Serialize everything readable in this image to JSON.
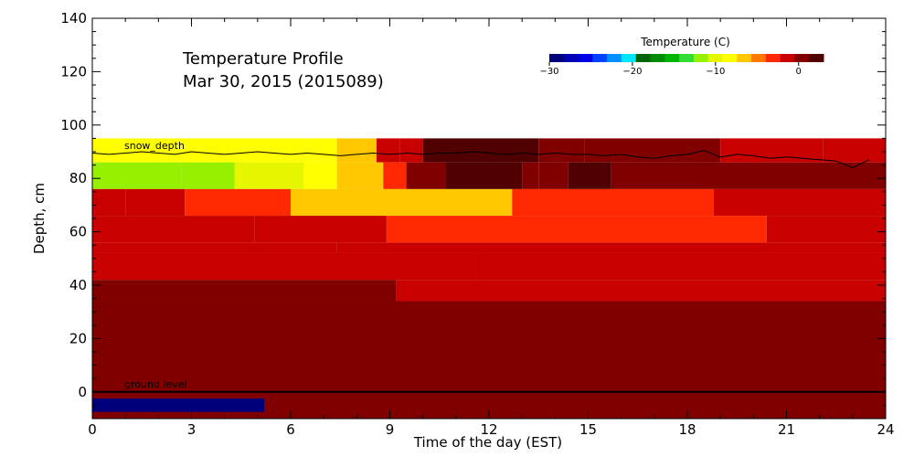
{
  "chart_data": {
    "type": "heatmap",
    "title": "Temperature Profile",
    "subtitle": "Mar 30, 2015 (2015089)",
    "xlabel": "Time of the day (EST)",
    "ylabel": "Depth, cm",
    "xlim": [
      0,
      24
    ],
    "ylim": [
      -10,
      140
    ],
    "xticks": [
      0,
      3,
      6,
      9,
      12,
      15,
      18,
      21,
      24
    ],
    "yticks": [
      0,
      20,
      40,
      60,
      80,
      100,
      120,
      140
    ],
    "grid": false,
    "colorbar": {
      "label": "Temperature (C)",
      "range": [
        -30,
        3
      ],
      "ticks": [
        -30,
        -20,
        -10,
        0
      ],
      "colors": [
        "#00007a",
        "#0000b4",
        "#0000e6",
        "#0040ff",
        "#0090ff",
        "#00e6ff",
        "#006400",
        "#008c00",
        "#00b400",
        "#32dc32",
        "#96f000",
        "#e6f500",
        "#ffff00",
        "#ffc800",
        "#ff7800",
        "#ff2800",
        "#c80000",
        "#800000",
        "#500000"
      ]
    },
    "annotations": {
      "snow_depth_label": "snow_depth",
      "ground_label": "ground level",
      "ground_level_depth": 0
    },
    "snow_depth": {
      "x": [
        0,
        0.5,
        1,
        1.5,
        2,
        2.5,
        3,
        3.5,
        4,
        4.5,
        5,
        5.5,
        6,
        6.5,
        7,
        7.5,
        8,
        8.5,
        9,
        9.5,
        10,
        10.5,
        11,
        11.5,
        12,
        12.5,
        13,
        13.5,
        14,
        14.5,
        15,
        15.5,
        16,
        16.5,
        17,
        17.5,
        18,
        18.5,
        19,
        19.5,
        20,
        20.5,
        21,
        21.5,
        22,
        22.5,
        23,
        23.5
      ],
      "y": [
        89.5,
        89,
        89.5,
        90,
        89.5,
        89,
        90,
        89.5,
        89,
        89.5,
        90,
        89.5,
        89,
        89.5,
        89,
        88.5,
        89,
        89.5,
        89,
        89.5,
        89,
        89.5,
        89.5,
        90,
        89.5,
        89,
        89.5,
        89,
        89.5,
        89,
        89,
        88.5,
        89,
        88,
        87.5,
        88.5,
        89,
        90.5,
        88,
        89,
        88.5,
        87.5,
        88,
        87.5,
        87,
        86.5,
        84,
        87
      ]
    },
    "bands": [
      {
        "top": 95,
        "bottom": 86,
        "segments": [
          {
            "x0": 0,
            "x1": 6.5,
            "t": -9
          },
          {
            "x0": 6.5,
            "x1": 7.4,
            "t": -8
          },
          {
            "x0": 7.4,
            "x1": 8.6,
            "t": -6
          },
          {
            "x0": 8.6,
            "x1": 9.3,
            "t": -2
          },
          {
            "x0": 9.3,
            "x1": 10,
            "t": -1
          },
          {
            "x0": 10,
            "x1": 13.5,
            "t": 2.5
          },
          {
            "x0": 13.5,
            "x1": 14.9,
            "t": 0.5
          },
          {
            "x0": 14.9,
            "x1": 19,
            "t": 0
          },
          {
            "x0": 19,
            "x1": 22.1,
            "t": -0.5
          },
          {
            "x0": 22.1,
            "x1": 24,
            "t": -1
          }
        ]
      },
      {
        "top": 86,
        "bottom": 76,
        "segments": [
          {
            "x0": 0,
            "x1": 2.7,
            "t": -11
          },
          {
            "x0": 2.7,
            "x1": 4.3,
            "t": -12
          },
          {
            "x0": 4.3,
            "x1": 6.4,
            "t": -10
          },
          {
            "x0": 6.4,
            "x1": 7.4,
            "t": -8
          },
          {
            "x0": 7.4,
            "x1": 8.8,
            "t": -6
          },
          {
            "x0": 8.8,
            "x1": 9.5,
            "t": -3
          },
          {
            "x0": 9.5,
            "x1": 10.7,
            "t": 0.5
          },
          {
            "x0": 10.7,
            "x1": 13,
            "t": 2.5
          },
          {
            "x0": 13,
            "x1": 13.5,
            "t": 0.5
          },
          {
            "x0": 13.5,
            "x1": 14.4,
            "t": 1.2
          },
          {
            "x0": 14.4,
            "x1": 15.7,
            "t": 1.5
          },
          {
            "x0": 15.7,
            "x1": 24,
            "t": 0
          }
        ]
      },
      {
        "top": 76,
        "bottom": 66,
        "segments": [
          {
            "x0": 0,
            "x1": 1,
            "t": -1
          },
          {
            "x0": 1,
            "x1": 2.8,
            "t": -2
          },
          {
            "x0": 2.8,
            "x1": 6,
            "t": -3
          },
          {
            "x0": 6,
            "x1": 12.7,
            "t": -6
          },
          {
            "x0": 12.7,
            "x1": 18.8,
            "t": -3
          },
          {
            "x0": 18.8,
            "x1": 24,
            "t": -2
          }
        ]
      },
      {
        "top": 66,
        "bottom": 56,
        "segments": [
          {
            "x0": 0,
            "x1": 4.9,
            "t": -1
          },
          {
            "x0": 4.9,
            "x1": 8.9,
            "t": -2
          },
          {
            "x0": 8.9,
            "x1": 20.4,
            "t": -3
          },
          {
            "x0": 20.4,
            "x1": 24,
            "t": -2
          }
        ]
      },
      {
        "top": 56,
        "bottom": 52,
        "segments": [
          {
            "x0": 0,
            "x1": 7.4,
            "t": -1
          },
          {
            "x0": 7.4,
            "x1": 24,
            "t": -2
          }
        ]
      },
      {
        "top": 52,
        "bottom": 42,
        "segments": [
          {
            "x0": 0,
            "x1": 11.6,
            "t": -1
          },
          {
            "x0": 11.6,
            "x1": 24,
            "t": -2
          }
        ]
      },
      {
        "top": 42,
        "bottom": 34,
        "segments": [
          {
            "x0": 0,
            "x1": 9.2,
            "t": 0
          },
          {
            "x0": 9.2,
            "x1": 24,
            "t": -1
          }
        ]
      },
      {
        "top": 34,
        "bottom": 0,
        "segments": [
          {
            "x0": 0,
            "x1": 24,
            "t": 0
          }
        ]
      },
      {
        "top": 0,
        "bottom": -10,
        "segments": [
          {
            "x0": 0,
            "x1": 24,
            "t": 0
          }
        ]
      },
      {
        "top": -2.5,
        "bottom": -7.5,
        "segments": [
          {
            "x0": 0,
            "x1": 5.2,
            "t": -29
          }
        ]
      }
    ]
  }
}
